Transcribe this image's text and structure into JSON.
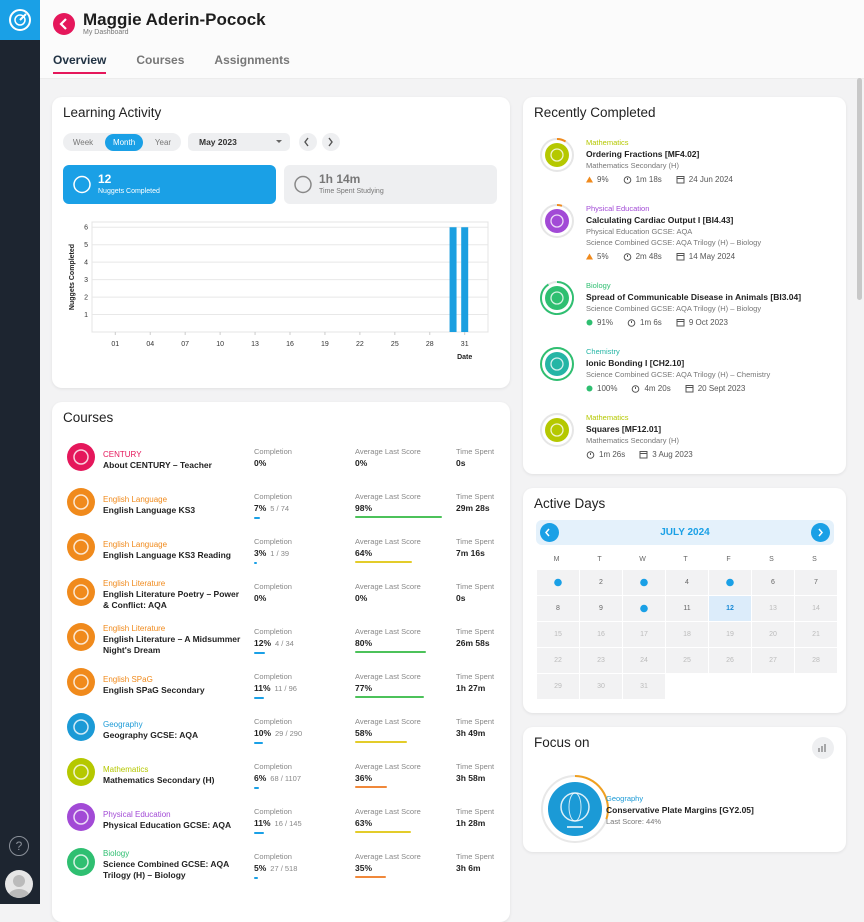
{
  "sidebar": {
    "help": "?"
  },
  "header": {
    "name": "Maggie Aderin-Pocock",
    "subtitle": "My Dashboard"
  },
  "tabs": {
    "items": [
      "Overview",
      "Courses",
      "Assignments"
    ],
    "active": 0
  },
  "learning_activity": {
    "title": "Learning Activity",
    "periods": [
      "Week",
      "Month",
      "Year"
    ],
    "active_period": 1,
    "month": "May 2023",
    "stats": [
      {
        "value": 12,
        "label": "Nuggets Completed"
      },
      {
        "value": "1h 14m",
        "label": "Time Spent Studying"
      }
    ],
    "chart": {
      "type": "bar",
      "x": [
        30,
        31
      ],
      "values": [
        6,
        6
      ],
      "color": "#1a9fe0",
      "xlim": [
        -1,
        33
      ],
      "ylim": [
        0,
        6.3
      ],
      "xticks": [
        {
          "value": 1,
          "label": "01"
        },
        {
          "value": 4,
          "label": "04"
        },
        {
          "value": 7,
          "label": "07"
        },
        10,
        13,
        16,
        19,
        22,
        25,
        28,
        31
      ],
      "yticks": [
        1,
        2,
        3,
        4,
        5,
        6
      ],
      "ylabel": "Nuggets Completed",
      "xlabel": "Date",
      "grid": true
    }
  },
  "courses": {
    "title": "Courses",
    "columns": [
      "Completion",
      "Average Last Score",
      "Time Spent"
    ],
    "rows": [
      {
        "subject": "CENTURY",
        "color": "#e5175b",
        "name": "About CENTURY – Teacher",
        "completion": {
          "value": 0,
          "label": "0%"
        },
        "score": {
          "value": 0,
          "label": "0%"
        },
        "score_color": "#4cc25a",
        "time": "0s"
      },
      {
        "subject": "English Language",
        "color": "#f08a1c",
        "name": "English Language KS3",
        "completion": {
          "value": 7,
          "label": "7%"
        },
        "progress": "5 / 74",
        "score": {
          "value": 98,
          "label": "98%"
        },
        "score_color": "#4cc25a",
        "time": "29m 28s"
      },
      {
        "subject": "English Language",
        "color": "#f08a1c",
        "name": "English Language KS3 Reading",
        "completion": {
          "value": 3,
          "label": "3%"
        },
        "progress": "1 / 39",
        "score": {
          "value": 64,
          "label": "64%"
        },
        "score_color": "#e3cc2a",
        "time": "7m 16s"
      },
      {
        "subject": "English Literature",
        "color": "#f08a1c",
        "name": "English Literature Poetry – Power & Conflict: AQA",
        "completion": {
          "value": 0,
          "label": "0%"
        },
        "score": {
          "value": 0,
          "label": "0%"
        },
        "score_color": "#4cc25a",
        "time": "0s"
      },
      {
        "subject": "English Literature",
        "color": "#f08a1c",
        "name": "English Literature – A Midsummer Night's Dream",
        "completion": {
          "value": 12,
          "label": "12%"
        },
        "progress": "4 / 34",
        "score": {
          "value": 80,
          "label": "80%"
        },
        "score_color": "#4cc25a",
        "time": "26m 58s"
      },
      {
        "subject": "English SPaG",
        "color": "#f08a1c",
        "name": "English SPaG Secondary",
        "completion": {
          "value": 11,
          "label": "11%"
        },
        "progress": "11 / 96",
        "score": {
          "value": 77,
          "label": "77%"
        },
        "score_color": "#4cc25a",
        "time": "1h 27m"
      },
      {
        "subject": "Geography",
        "color": "#1b9ad6",
        "name": "Geography GCSE: AQA",
        "completion": {
          "value": 10,
          "label": "10%"
        },
        "progress": "29 / 290",
        "score": {
          "value": 58,
          "label": "58%"
        },
        "score_color": "#e3cc2a",
        "time": "3h 49m"
      },
      {
        "subject": "Mathematics",
        "color": "#b5c800",
        "name": "Mathematics Secondary (H)",
        "completion": {
          "value": 6,
          "label": "6%"
        },
        "progress": "68 / 1107",
        "score": {
          "value": 36,
          "label": "36%"
        },
        "score_color": "#f0883a",
        "time": "3h 58m"
      },
      {
        "subject": "Physical Education",
        "color": "#a24ad6",
        "name": "Physical Education GCSE: AQA",
        "completion": {
          "value": 11,
          "label": "11%"
        },
        "progress": "16 / 145",
        "score": {
          "value": 63,
          "label": "63%"
        },
        "score_color": "#e3cc2a",
        "time": "1h 28m"
      },
      {
        "subject": "Biology",
        "color": "#2fbf71",
        "name": "Science Combined GCSE: AQA Trilogy (H) – Biology",
        "completion": {
          "value": 5,
          "label": "5%"
        },
        "progress": "27 / 518",
        "score": {
          "value": 35,
          "label": "35%"
        },
        "score_color": "#f0883a",
        "time": "3h 6m"
      }
    ]
  },
  "recently_completed": {
    "title": "Recently Completed",
    "items": [
      {
        "subject": "Mathematics",
        "color": "#b5c800",
        "name": "Ordering Fractions [MF4.02]",
        "courses": [
          "Mathematics Secondary (H)"
        ],
        "score": {
          "value": 9,
          "label": "9%"
        },
        "trend": "up",
        "score_color": "#f08a1c",
        "time": "1m 18s",
        "date": "24 Jun 2024"
      },
      {
        "subject": "Physical Education",
        "color": "#a24ad6",
        "name": "Calculating Cardiac Output I [BI4.43]",
        "courses": [
          "Physical Education GCSE: AQA",
          "Science Combined GCSE: AQA Trilogy (H) – Biology"
        ],
        "score": {
          "value": 5,
          "label": "5%"
        },
        "trend": "up",
        "score_color": "#f08a1c",
        "time": "2m 48s",
        "date": "14 May 2024"
      },
      {
        "subject": "Biology",
        "color": "#2fbf71",
        "name": "Spread of Communicable Disease in Animals [BI3.04]",
        "courses": [
          "Science Combined GCSE: AQA Trilogy (H) – Biology"
        ],
        "score": {
          "value": 91,
          "label": "91%"
        },
        "trend": "dot",
        "score_color": "#2fbf71",
        "time": "1m 6s",
        "date": "9 Oct 2023"
      },
      {
        "subject": "Chemistry",
        "color": "#25b5a5",
        "name": "Ionic Bonding I [CH2.10]",
        "courses": [
          "Science Combined GCSE: AQA Trilogy (H) – Chemistry"
        ],
        "score": {
          "value": 100,
          "label": "100%"
        },
        "trend": "dot",
        "score_color": "#2fbf71",
        "time": "4m 20s",
        "date": "20 Sept 2023"
      },
      {
        "subject": "Mathematics",
        "color": "#b5c800",
        "name": "Squares [MF12.01]",
        "courses": [
          "Mathematics Secondary (H)"
        ],
        "time": "1m 26s",
        "date": "3 Aug 2023"
      }
    ]
  },
  "active_days": {
    "title": "Active Days",
    "month": "JULY 2024",
    "weekdays": [
      "M",
      "T",
      "W",
      "T",
      "F",
      "S",
      "S"
    ],
    "days": [
      1,
      2,
      3,
      4,
      5,
      6,
      7,
      8,
      9,
      10,
      11,
      12,
      13,
      14,
      15,
      16,
      17,
      18,
      19,
      20,
      21,
      22,
      23,
      24,
      25,
      26,
      27,
      28,
      29,
      30,
      31
    ],
    "active": [
      1,
      3,
      5,
      10
    ],
    "today": 12
  },
  "focus": {
    "title": "Focus on",
    "subject": "Geography",
    "color": "#1b9ad6",
    "name": "Conservative Plate Margins [GY2.05]",
    "last_score": "Last Score: 44%"
  }
}
